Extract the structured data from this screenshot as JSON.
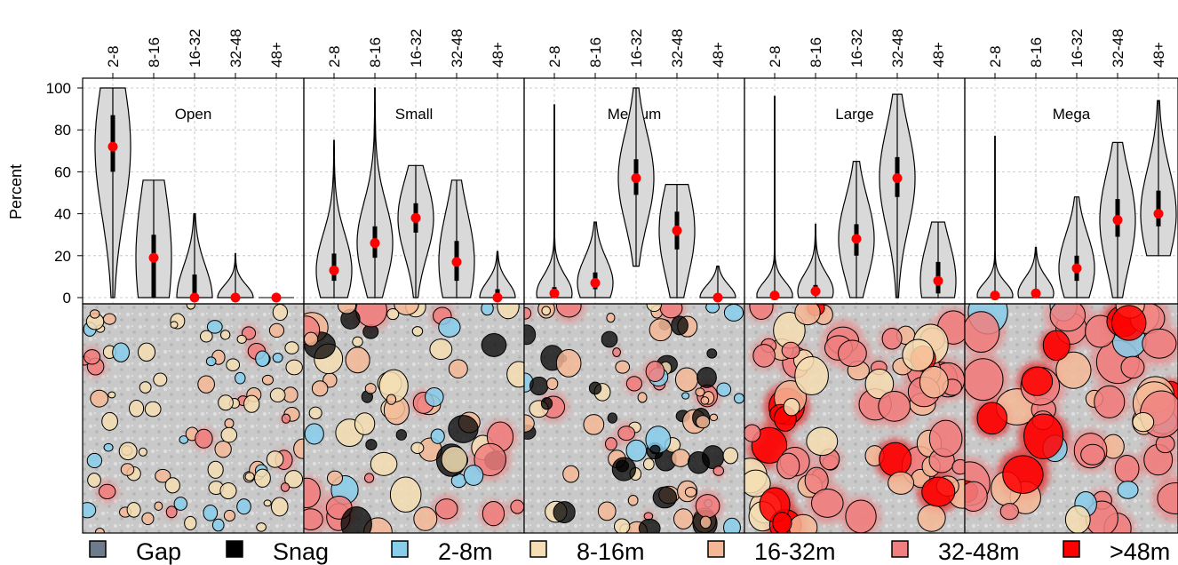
{
  "chart_data": {
    "type": "violin",
    "ylabel": "Percent",
    "ylim": [
      0,
      100
    ],
    "yticks": [
      0,
      20,
      40,
      60,
      80,
      100
    ],
    "grid": true,
    "categories": [
      "2-8",
      "8-16",
      "16-32",
      "32-48",
      "48+"
    ],
    "panels": [
      {
        "name": "Open",
        "median": [
          72,
          19,
          0,
          0,
          0
        ],
        "q1": [
          60,
          0,
          0,
          0,
          0
        ],
        "q3": [
          87,
          30,
          11,
          1,
          0
        ],
        "min": [
          0,
          0,
          0,
          0,
          0
        ],
        "max": [
          100,
          56,
          40,
          21,
          0
        ]
      },
      {
        "name": "Small",
        "median": [
          13,
          26,
          38,
          17,
          0
        ],
        "q1": [
          8,
          19,
          31,
          8,
          0
        ],
        "q3": [
          21,
          34,
          45,
          27,
          4
        ],
        "min": [
          0,
          0,
          0,
          0,
          0
        ],
        "max": [
          75,
          100,
          63,
          56,
          22
        ]
      },
      {
        "name": "Medium",
        "median": [
          2,
          7,
          57,
          32,
          0
        ],
        "q1": [
          0,
          4,
          49,
          23,
          0
        ],
        "q3": [
          5,
          12,
          66,
          41,
          1
        ],
        "min": [
          0,
          0,
          15,
          0,
          0
        ],
        "max": [
          92,
          36,
          100,
          54,
          15
        ]
      },
      {
        "name": "Large",
        "median": [
          1,
          3,
          28,
          57,
          8
        ],
        "q1": [
          0,
          1,
          20,
          48,
          2
        ],
        "q3": [
          3,
          6,
          35,
          67,
          17
        ],
        "min": [
          0,
          0,
          0,
          0,
          0
        ],
        "max": [
          96,
          35,
          65,
          97,
          36
        ]
      },
      {
        "name": "Mega",
        "median": [
          1,
          2,
          14,
          37,
          40
        ],
        "q1": [
          0,
          0,
          8,
          29,
          34
        ],
        "q3": [
          2,
          4,
          20,
          47,
          51
        ],
        "min": [
          0,
          0,
          0,
          0,
          20
        ],
        "max": [
          77,
          24,
          48,
          74,
          94
        ]
      }
    ],
    "legend": {
      "placement": "bottom",
      "items": [
        {
          "label": "Gap",
          "color": "#6e7b8b"
        },
        {
          "label": "Snag",
          "color": "#000000"
        },
        {
          "label": "2-8m",
          "color": "#87ceeb"
        },
        {
          "label": "8-16m",
          "color": "#f5deb3"
        },
        {
          "label": "16-32m",
          "color": "#f4b896"
        },
        {
          "label": "32-48m",
          "color": "#f08080"
        },
        {
          "label": ">48m",
          "color": "#ff0000"
        }
      ]
    },
    "colors": {
      "violin_fill": "#d9d9d9",
      "median": "#ff0000",
      "iqr": "#000000",
      "grid": "#bebebe"
    }
  }
}
